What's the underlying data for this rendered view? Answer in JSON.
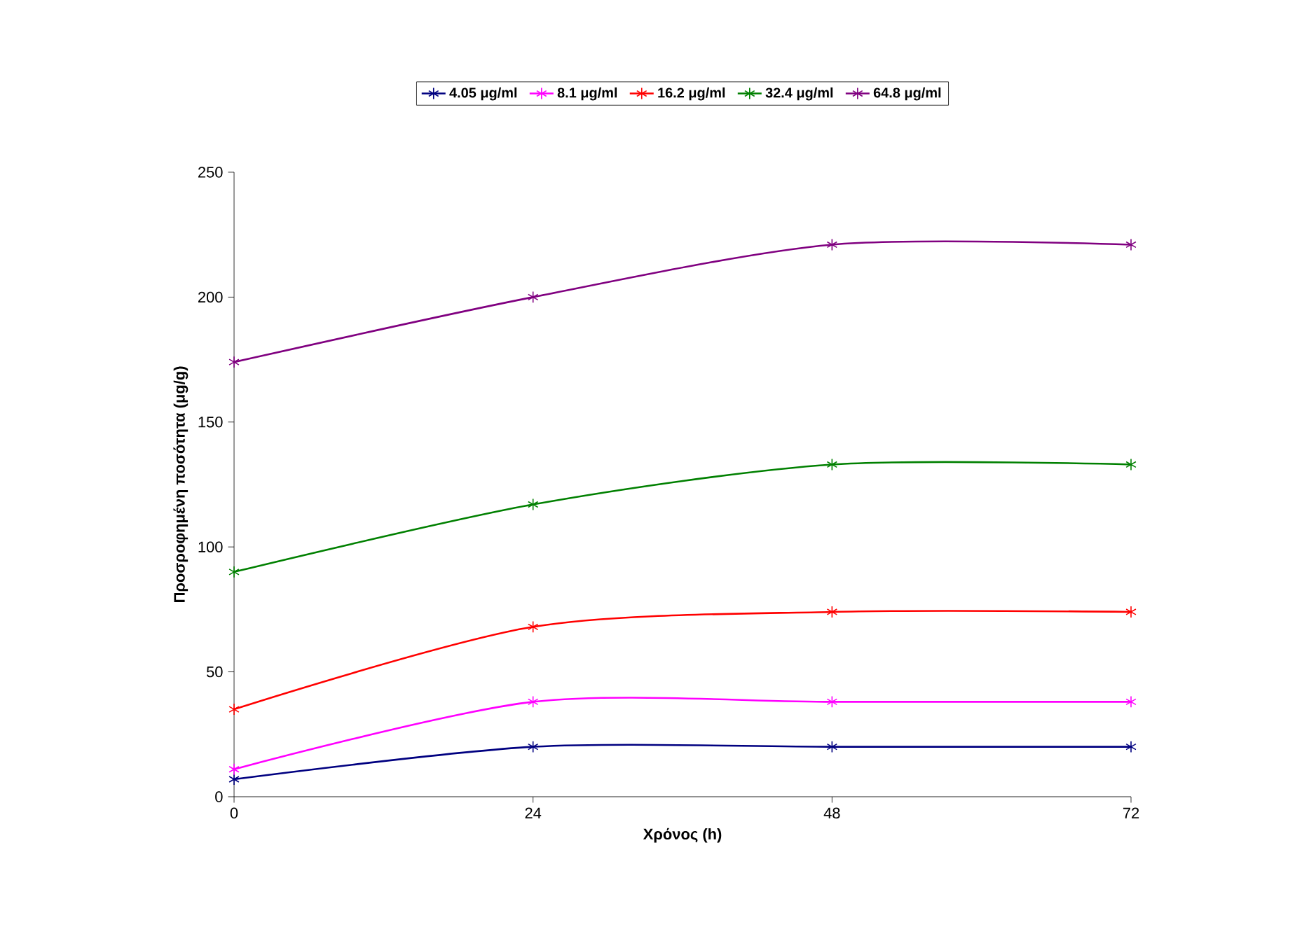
{
  "chart_data": {
    "type": "line",
    "xlabel": "Χρόνος (h)",
    "ylabel": "Προσροφημένη ποσότητα (μg/g)",
    "x": [
      0,
      24,
      48,
      72
    ],
    "series": [
      {
        "name": "4.05 μg/ml",
        "color": "#000080",
        "values": [
          7,
          20,
          20,
          20
        ]
      },
      {
        "name": "8.1 μg/ml",
        "color": "#ff00ff",
        "values": [
          11,
          38,
          38,
          38
        ]
      },
      {
        "name": "16.2 μg/ml",
        "color": "#ff0000",
        "values": [
          35,
          68,
          74,
          74
        ]
      },
      {
        "name": "32.4 μg/ml",
        "color": "#008000",
        "values": [
          90,
          117,
          133,
          133
        ]
      },
      {
        "name": "64.8 μg/ml",
        "color": "#800080",
        "values": [
          174,
          200,
          221,
          221
        ]
      }
    ],
    "xlim": [
      0,
      72
    ],
    "xticks": [
      0,
      24,
      48,
      72
    ],
    "ylim": [
      0,
      250
    ],
    "yticks": [
      0,
      50,
      100,
      150,
      200,
      250
    ],
    "grid": false,
    "legend": "top",
    "marker": "cross",
    "line_style": "solid"
  }
}
